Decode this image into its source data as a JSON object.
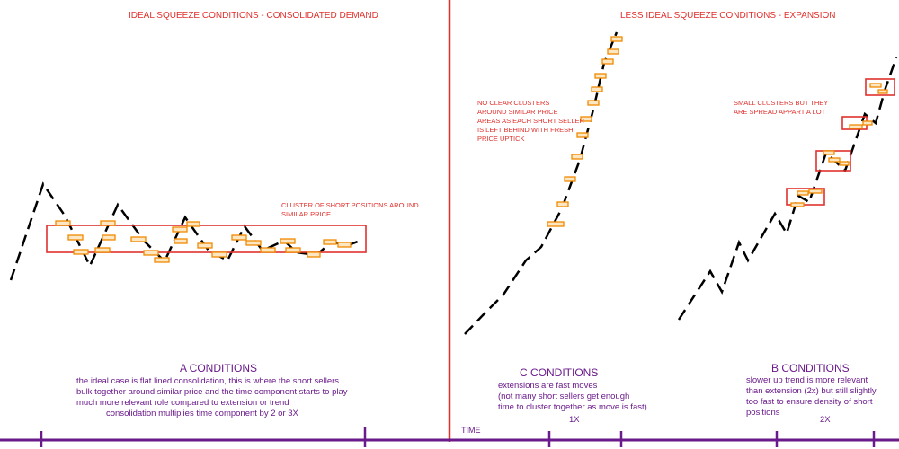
{
  "left_panel": {
    "title": "IDEAL SQUEEZE CONDITIONS - CONSOLIDATED DEMAND",
    "cluster_note": [
      "CLUSTER OF SHORT POSITIONS AROUND",
      "SIMILAR PRICE"
    ],
    "condition_title": "A CONDITIONS",
    "condition_lines": [
      "the ideal case is flat lined consolidation, this is where the short sellers",
      "bulk together around similar price and the time component starts to play",
      "much more relevant role compared to extension or trend",
      "consolidation multiplies time component by 2 or 3X"
    ]
  },
  "right_panel": {
    "title": "LESS IDEAL SQUEEZE CONDITIONS - EXPANSION",
    "c_note": [
      "NO CLEAR CLUSTERS",
      "AROUND SIMILAR PRICE",
      "AREAS AS EACH SHORT SELLER",
      "IS LEFT BEHIND WITH FRESH",
      "PRICE UPTICK"
    ],
    "b_note": [
      "SMALL CLUSTERS BUT THEY",
      "ARE SPREAD APPART A LOT"
    ],
    "c_title": "C CONDITIONS",
    "c_lines": [
      "extensions are fast moves",
      "(not many short sellers get enough",
      "time to cluster together as move is fast)"
    ],
    "c_multiplier": "1X",
    "b_title": "B CONDITIONS",
    "b_lines": [
      "slower up trend is more relevant",
      "than extension (2x) but still slightly",
      "too fast to ensure density of short",
      "positions"
    ],
    "b_multiplier": "2X"
  },
  "axis": {
    "time_label": "TIME"
  },
  "colors": {
    "red": "#e0312d",
    "orange": "#f08a00",
    "purple": "#6a1a8a",
    "line": "#000000"
  }
}
